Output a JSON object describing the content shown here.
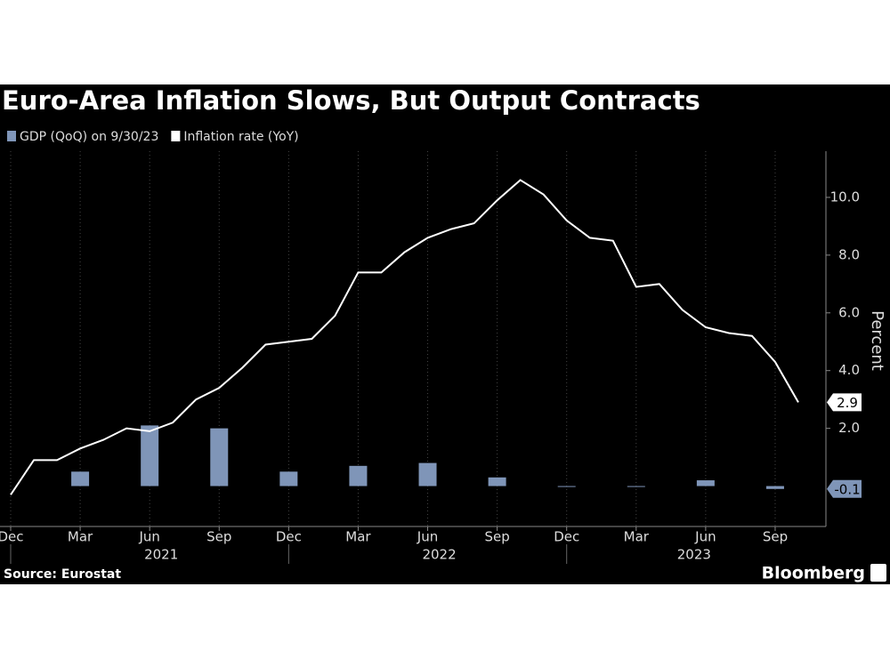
{
  "chart_data": {
    "type": "bar-line",
    "title": "Euro-Area Inflation Slows, But Output Contracts",
    "source": "Source: Eurostat",
    "brand": "Bloomberg",
    "y_label": "Percent",
    "categories": [
      "Dec",
      null,
      null,
      "Mar",
      null,
      null,
      "Jun",
      null,
      null,
      "Sep",
      null,
      null,
      "Dec",
      null,
      null,
      "Mar",
      null,
      null,
      "Jun",
      null,
      null,
      "Sep",
      null,
      null,
      "Dec",
      null,
      null,
      "Mar",
      null,
      null,
      "Jun",
      null,
      null,
      "Sep",
      null
    ],
    "x_year_labels": [
      "2021",
      "2022",
      "2023"
    ],
    "series": [
      {
        "name": "GDP (QoQ) on 9/30/23",
        "type": "bar",
        "color": "#7f95b8",
        "values": [
          null,
          null,
          null,
          0.5,
          null,
          null,
          2.1,
          null,
          null,
          2.0,
          null,
          null,
          0.5,
          null,
          null,
          0.7,
          null,
          null,
          0.8,
          null,
          null,
          0.3,
          null,
          null,
          0.0,
          null,
          null,
          0.0,
          null,
          null,
          0.2,
          null,
          null,
          -0.1,
          null
        ],
        "value_labels": [
          null,
          null,
          null,
          null,
          null,
          null,
          null,
          null,
          null,
          null,
          null,
          null,
          null,
          null,
          null,
          null,
          null,
          null,
          null,
          null,
          null,
          null,
          null,
          null,
          null,
          null,
          null,
          null,
          null,
          null,
          null,
          null,
          null,
          "-0.1",
          null
        ]
      },
      {
        "name": "Inflation rate (YoY)",
        "type": "line",
        "color": "#ffffff",
        "values": [
          -0.3,
          0.9,
          0.9,
          1.3,
          1.6,
          2.0,
          1.9,
          2.2,
          3.0,
          3.4,
          4.1,
          4.9,
          5.0,
          5.1,
          5.9,
          7.4,
          7.4,
          8.1,
          8.6,
          8.9,
          9.1,
          9.9,
          10.6,
          10.1,
          9.2,
          8.6,
          8.5,
          6.9,
          7.0,
          6.1,
          5.5,
          5.3,
          5.2,
          4.3,
          2.9
        ],
        "value_labels": [
          null,
          null,
          null,
          null,
          null,
          null,
          null,
          null,
          null,
          null,
          null,
          null,
          null,
          null,
          null,
          null,
          null,
          null,
          null,
          null,
          null,
          null,
          null,
          null,
          null,
          null,
          null,
          null,
          null,
          null,
          null,
          null,
          null,
          null,
          "2.9"
        ]
      }
    ],
    "ylim": [
      -1.4,
      11.6
    ],
    "yticks": [
      {
        "value": 2,
        "label": "2.0"
      },
      {
        "value": 4,
        "label": "4.0"
      },
      {
        "value": 6,
        "label": "6.0"
      },
      {
        "value": 8,
        "label": "8.0"
      },
      {
        "value": 10,
        "label": "10.0"
      }
    ],
    "x_grid": true
  }
}
